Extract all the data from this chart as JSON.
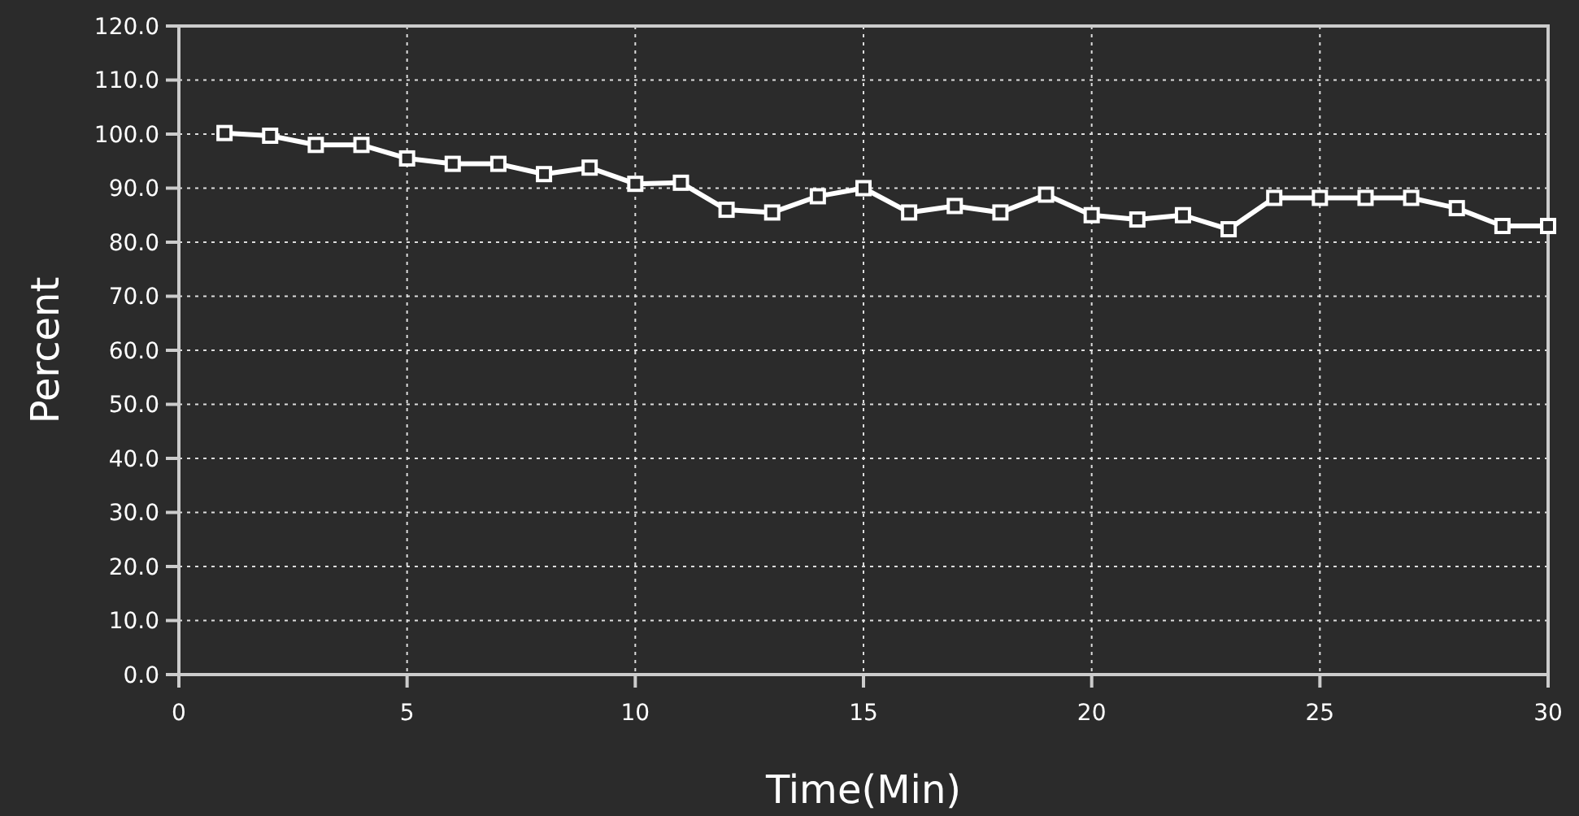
{
  "chart_data": {
    "type": "line",
    "xlabel": "Time(Min)",
    "ylabel": "Percent",
    "x": [
      1,
      2,
      3,
      4,
      5,
      6,
      7,
      8,
      9,
      10,
      11,
      12,
      13,
      14,
      15,
      16,
      17,
      18,
      19,
      20,
      21,
      22,
      23,
      24,
      25,
      26,
      27,
      28,
      29,
      30
    ],
    "series": [
      {
        "color": "#ffffff",
        "values": [
          100.2,
          99.7,
          98,
          98,
          95.5,
          94.5,
          94.5,
          92.6,
          93.8,
          90.8,
          91,
          86,
          85.5,
          88.5,
          90,
          85.5,
          86.7,
          85.5,
          88.8,
          85,
          84.2,
          85,
          82.4,
          88.2,
          88.2,
          88.2,
          88.2,
          86.3,
          83,
          83
        ]
      }
    ],
    "xlim": [
      0,
      30
    ],
    "xticks": [
      0,
      5,
      10,
      15,
      20,
      25,
      30
    ],
    "ylim": [
      0,
      120
    ],
    "yticks": [
      {
        "value": 0,
        "label": "0.0"
      },
      {
        "value": 10,
        "label": "10.0"
      },
      {
        "value": 20,
        "label": "20.0"
      },
      {
        "value": 30,
        "label": "30.0"
      },
      {
        "value": 40,
        "label": "40.0"
      },
      {
        "value": 50,
        "label": "50.0"
      },
      {
        "value": 60,
        "label": "60.0"
      },
      {
        "value": 70,
        "label": "70.0"
      },
      {
        "value": 80,
        "label": "80.0"
      },
      {
        "value": 90,
        "label": "90.0"
      },
      {
        "value": 100,
        "label": "100.0"
      },
      {
        "value": 110,
        "label": "110.0"
      },
      {
        "value": 120,
        "label": "120.0"
      }
    ],
    "grid": true,
    "marker": "square",
    "line_style": "solid"
  }
}
